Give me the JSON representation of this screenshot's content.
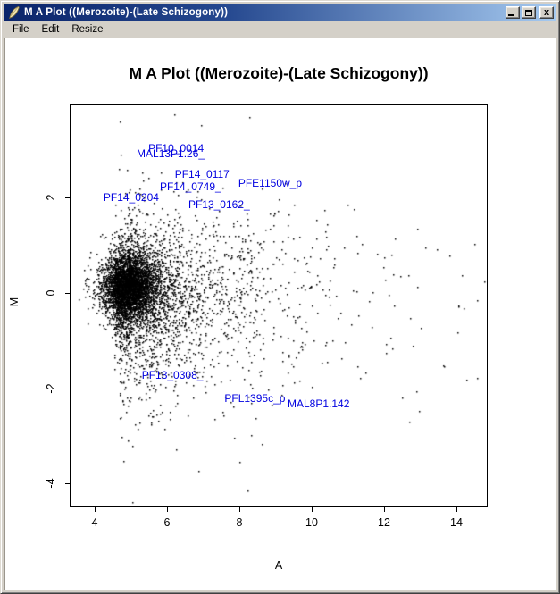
{
  "window": {
    "title": "M A Plot ((Merozoite)-(Late Schizogony))",
    "icon": "r-feather",
    "controls": {
      "close_glyph": "x"
    }
  },
  "menu": {
    "items": [
      "File",
      "Edit",
      "Resize"
    ]
  },
  "chart_data": {
    "type": "scatter",
    "title": "M A Plot ((Merozoite)-(Late Schizogony))",
    "xlabel": "A",
    "ylabel": "M",
    "xlim": [
      3.3,
      14.86
    ],
    "ylim": [
      -4.5,
      3.98
    ],
    "xticks": [
      4,
      6,
      8,
      10,
      12,
      14
    ],
    "yticks": [
      2,
      0,
      -2,
      -4
    ],
    "grid": false,
    "point_color": "#000000",
    "label_color": "#0000e0",
    "labeled_points": [
      {
        "name": "PF10_0014",
        "a": 6.25,
        "m": 3.04
      },
      {
        "name": "MAL13P1.26_",
        "a": 6.1,
        "m": 2.92
      },
      {
        "name": "PF14_0117",
        "a": 6.97,
        "m": 2.49
      },
      {
        "name": "PF14_0749_",
        "a": 6.65,
        "m": 2.24
      },
      {
        "name": "PFE1150w_p",
        "a": 8.85,
        "m": 2.3
      },
      {
        "name": "PF14_0204",
        "a": 5.01,
        "m": 2.0
      },
      {
        "name": "PF13_0162_",
        "a": 7.44,
        "m": 1.86
      },
      {
        "name": "PF13_0308_",
        "a": 6.15,
        "m": -1.72
      },
      {
        "name": "PFL1395c_p",
        "a": 8.43,
        "m": -2.21
      },
      {
        "name": "MAL8P1.142",
        "a": 10.19,
        "m": -2.32
      }
    ],
    "outlier_points": [
      [
        6.23,
        3.73
      ],
      [
        8.3,
        3.67
      ],
      [
        8.25,
        -4.17
      ],
      [
        6.9,
        -3.75
      ],
      [
        14.79,
        0.23
      ],
      [
        14.07,
        -0.3
      ],
      [
        14.22,
        -0.34
      ],
      [
        14.05,
        -0.84
      ],
      [
        12.91,
        -2.08
      ],
      [
        12.99,
        -2.5
      ],
      [
        12.72,
        -2.72
      ],
      [
        13.83,
        0.77
      ]
    ],
    "cloud": {
      "seed": 7,
      "components": [
        {
          "n": 3200,
          "a_mean": 4.95,
          "a_sd": 0.38,
          "m_mean": 0.12,
          "m_sd": 0.33
        },
        {
          "n": 1700,
          "a_base": 4.55,
          "a_scale": 1.05,
          "m_mean": 0.0,
          "m_sd": 0.62
        },
        {
          "n": 1150,
          "a_base": 4.7,
          "a_scale": 1.75,
          "m_mean": -0.3,
          "m_sd": 1.15
        },
        {
          "n": 100,
          "a_base": 8.0,
          "a_scale": 1.8,
          "m_mean": 0.1,
          "m_sd": 1.0
        }
      ]
    }
  }
}
